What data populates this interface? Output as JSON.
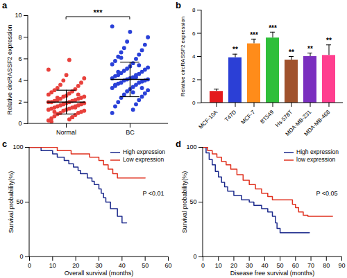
{
  "chart_data": [
    {
      "type": "scatter",
      "title": "a",
      "ylabel": "Relative circRASSF2 expression",
      "ylim": [
        0,
        10
      ],
      "yticks": [
        0,
        2,
        4,
        6,
        8,
        10
      ],
      "annotation": "***",
      "series": [
        {
          "name": "Normal",
          "color": "#e8413c",
          "mean": 2.0,
          "sd": 1.1,
          "values": [
            0.3,
            0.4,
            0.5,
            0.6,
            0.7,
            0.8,
            0.9,
            1.0,
            1.0,
            1.1,
            1.2,
            1.2,
            1.3,
            1.3,
            1.4,
            1.4,
            1.5,
            1.5,
            1.6,
            1.6,
            1.7,
            1.7,
            1.8,
            1.8,
            1.9,
            1.9,
            2.0,
            2.0,
            2.0,
            2.1,
            2.1,
            2.2,
            2.2,
            2.3,
            2.3,
            2.4,
            2.5,
            2.5,
            2.6,
            2.7,
            2.8,
            2.9,
            3.0,
            3.1,
            3.2,
            3.3,
            3.5,
            3.6,
            3.8,
            4.0,
            4.2,
            4.5,
            5.0,
            5.9,
            0.2,
            0.6,
            1.1,
            1.5,
            2.4,
            2.7
          ]
        },
        {
          "name": "BC",
          "color": "#2a41d8",
          "mean": 4.1,
          "sd": 1.6,
          "values": [
            1.0,
            1.3,
            1.6,
            1.8,
            2.0,
            2.2,
            2.4,
            2.5,
            2.7,
            2.8,
            3.0,
            3.1,
            3.2,
            3.3,
            3.4,
            3.5,
            3.6,
            3.7,
            3.8,
            3.8,
            3.9,
            4.0,
            4.0,
            4.1,
            4.1,
            4.2,
            4.2,
            4.3,
            4.4,
            4.5,
            4.5,
            4.6,
            4.7,
            4.8,
            4.9,
            5.0,
            5.1,
            5.2,
            5.3,
            5.5,
            5.6,
            5.8,
            6.0,
            6.2,
            6.4,
            6.6,
            6.8,
            7.0,
            7.3,
            7.6,
            8.0,
            8.5,
            9.0,
            2.9,
            3.6,
            4.3,
            4.8,
            5.4,
            6.1,
            3.3
          ]
        }
      ]
    },
    {
      "type": "bar",
      "title": "b",
      "ylabel": "Relative circRASSF2 expression",
      "ylim": [
        0,
        8
      ],
      "yticks": [
        0,
        2,
        4,
        6,
        8
      ],
      "categories": [
        "MCF-10A",
        "T47D",
        "MCF-7",
        "BT549",
        "Hs-578T",
        "MDA-MB-231",
        "MDA-MB-468"
      ],
      "values": [
        1.0,
        3.9,
        5.1,
        5.6,
        3.7,
        4.0,
        4.1
      ],
      "errors": [
        0.2,
        0.3,
        0.4,
        0.5,
        0.3,
        0.3,
        0.9
      ],
      "annotations": [
        null,
        "**",
        "***",
        "***",
        "**",
        "**",
        "**"
      ],
      "colors": [
        "#e41a1c",
        "#2b3fd6",
        "#ff8c1a",
        "#2fbf3a",
        "#a0522d",
        "#7b2fbf",
        "#ff3f8f"
      ]
    },
    {
      "type": "line",
      "title": "c",
      "xlabel": "Overall survival (months)",
      "ylabel": "Survival probability(%)",
      "xlim": [
        0,
        60
      ],
      "xticks": [
        0,
        10,
        20,
        30,
        40,
        50,
        60
      ],
      "ylim": [
        0,
        100
      ],
      "yticks": [
        0,
        50,
        100
      ],
      "annotation": "P <0.01",
      "legend": "top-right",
      "series": [
        {
          "name": "High expression",
          "color": "#1c2a8c",
          "x": [
            0,
            5,
            10,
            12,
            15,
            17,
            19,
            21,
            22,
            25,
            27,
            28,
            30,
            31,
            32,
            33,
            35,
            38,
            40,
            42
          ],
          "values": [
            100,
            97,
            94,
            91,
            88,
            85,
            82,
            79,
            76,
            72,
            69,
            66,
            62,
            58,
            54,
            50,
            44,
            37,
            31,
            31
          ]
        },
        {
          "name": "Low expression",
          "color": "#e0301e",
          "x": [
            0,
            12,
            18,
            26,
            30,
            32,
            34,
            36,
            38,
            50
          ],
          "values": [
            100,
            97,
            94,
            91,
            88,
            84,
            80,
            76,
            72,
            72
          ]
        }
      ]
    },
    {
      "type": "line",
      "title": "d",
      "xlabel": "Disease free survival (months)",
      "ylabel": "Survival probability(%)",
      "xlim": [
        0,
        90
      ],
      "xticks": [
        0,
        10,
        20,
        30,
        40,
        50,
        60,
        70,
        80,
        90
      ],
      "ylim": [
        0,
        100
      ],
      "yticks": [
        0,
        50,
        100
      ],
      "annotation": "P <0.05",
      "legend": "top-right",
      "series": [
        {
          "name": "High expression",
          "color": "#1c2a8c",
          "x": [
            0,
            2,
            4,
            6,
            8,
            10,
            12,
            14,
            16,
            20,
            25,
            30,
            33,
            38,
            42,
            45,
            47,
            48,
            50,
            69
          ],
          "values": [
            100,
            95,
            89,
            84,
            78,
            73,
            68,
            64,
            60,
            56,
            52,
            50,
            47,
            44,
            41,
            37,
            31,
            26,
            22,
            22
          ]
        },
        {
          "name": "low expression",
          "color": "#e0301e",
          "x": [
            0,
            3,
            6,
            9,
            12,
            15,
            18,
            22,
            26,
            30,
            34,
            38,
            42,
            45,
            55,
            58,
            60,
            62,
            65,
            68,
            84
          ],
          "values": [
            100,
            97,
            94,
            91,
            87,
            84,
            80,
            75,
            70,
            66,
            62,
            58,
            55,
            52,
            52,
            48,
            45,
            41,
            38,
            37,
            37
          ]
        }
      ]
    }
  ]
}
